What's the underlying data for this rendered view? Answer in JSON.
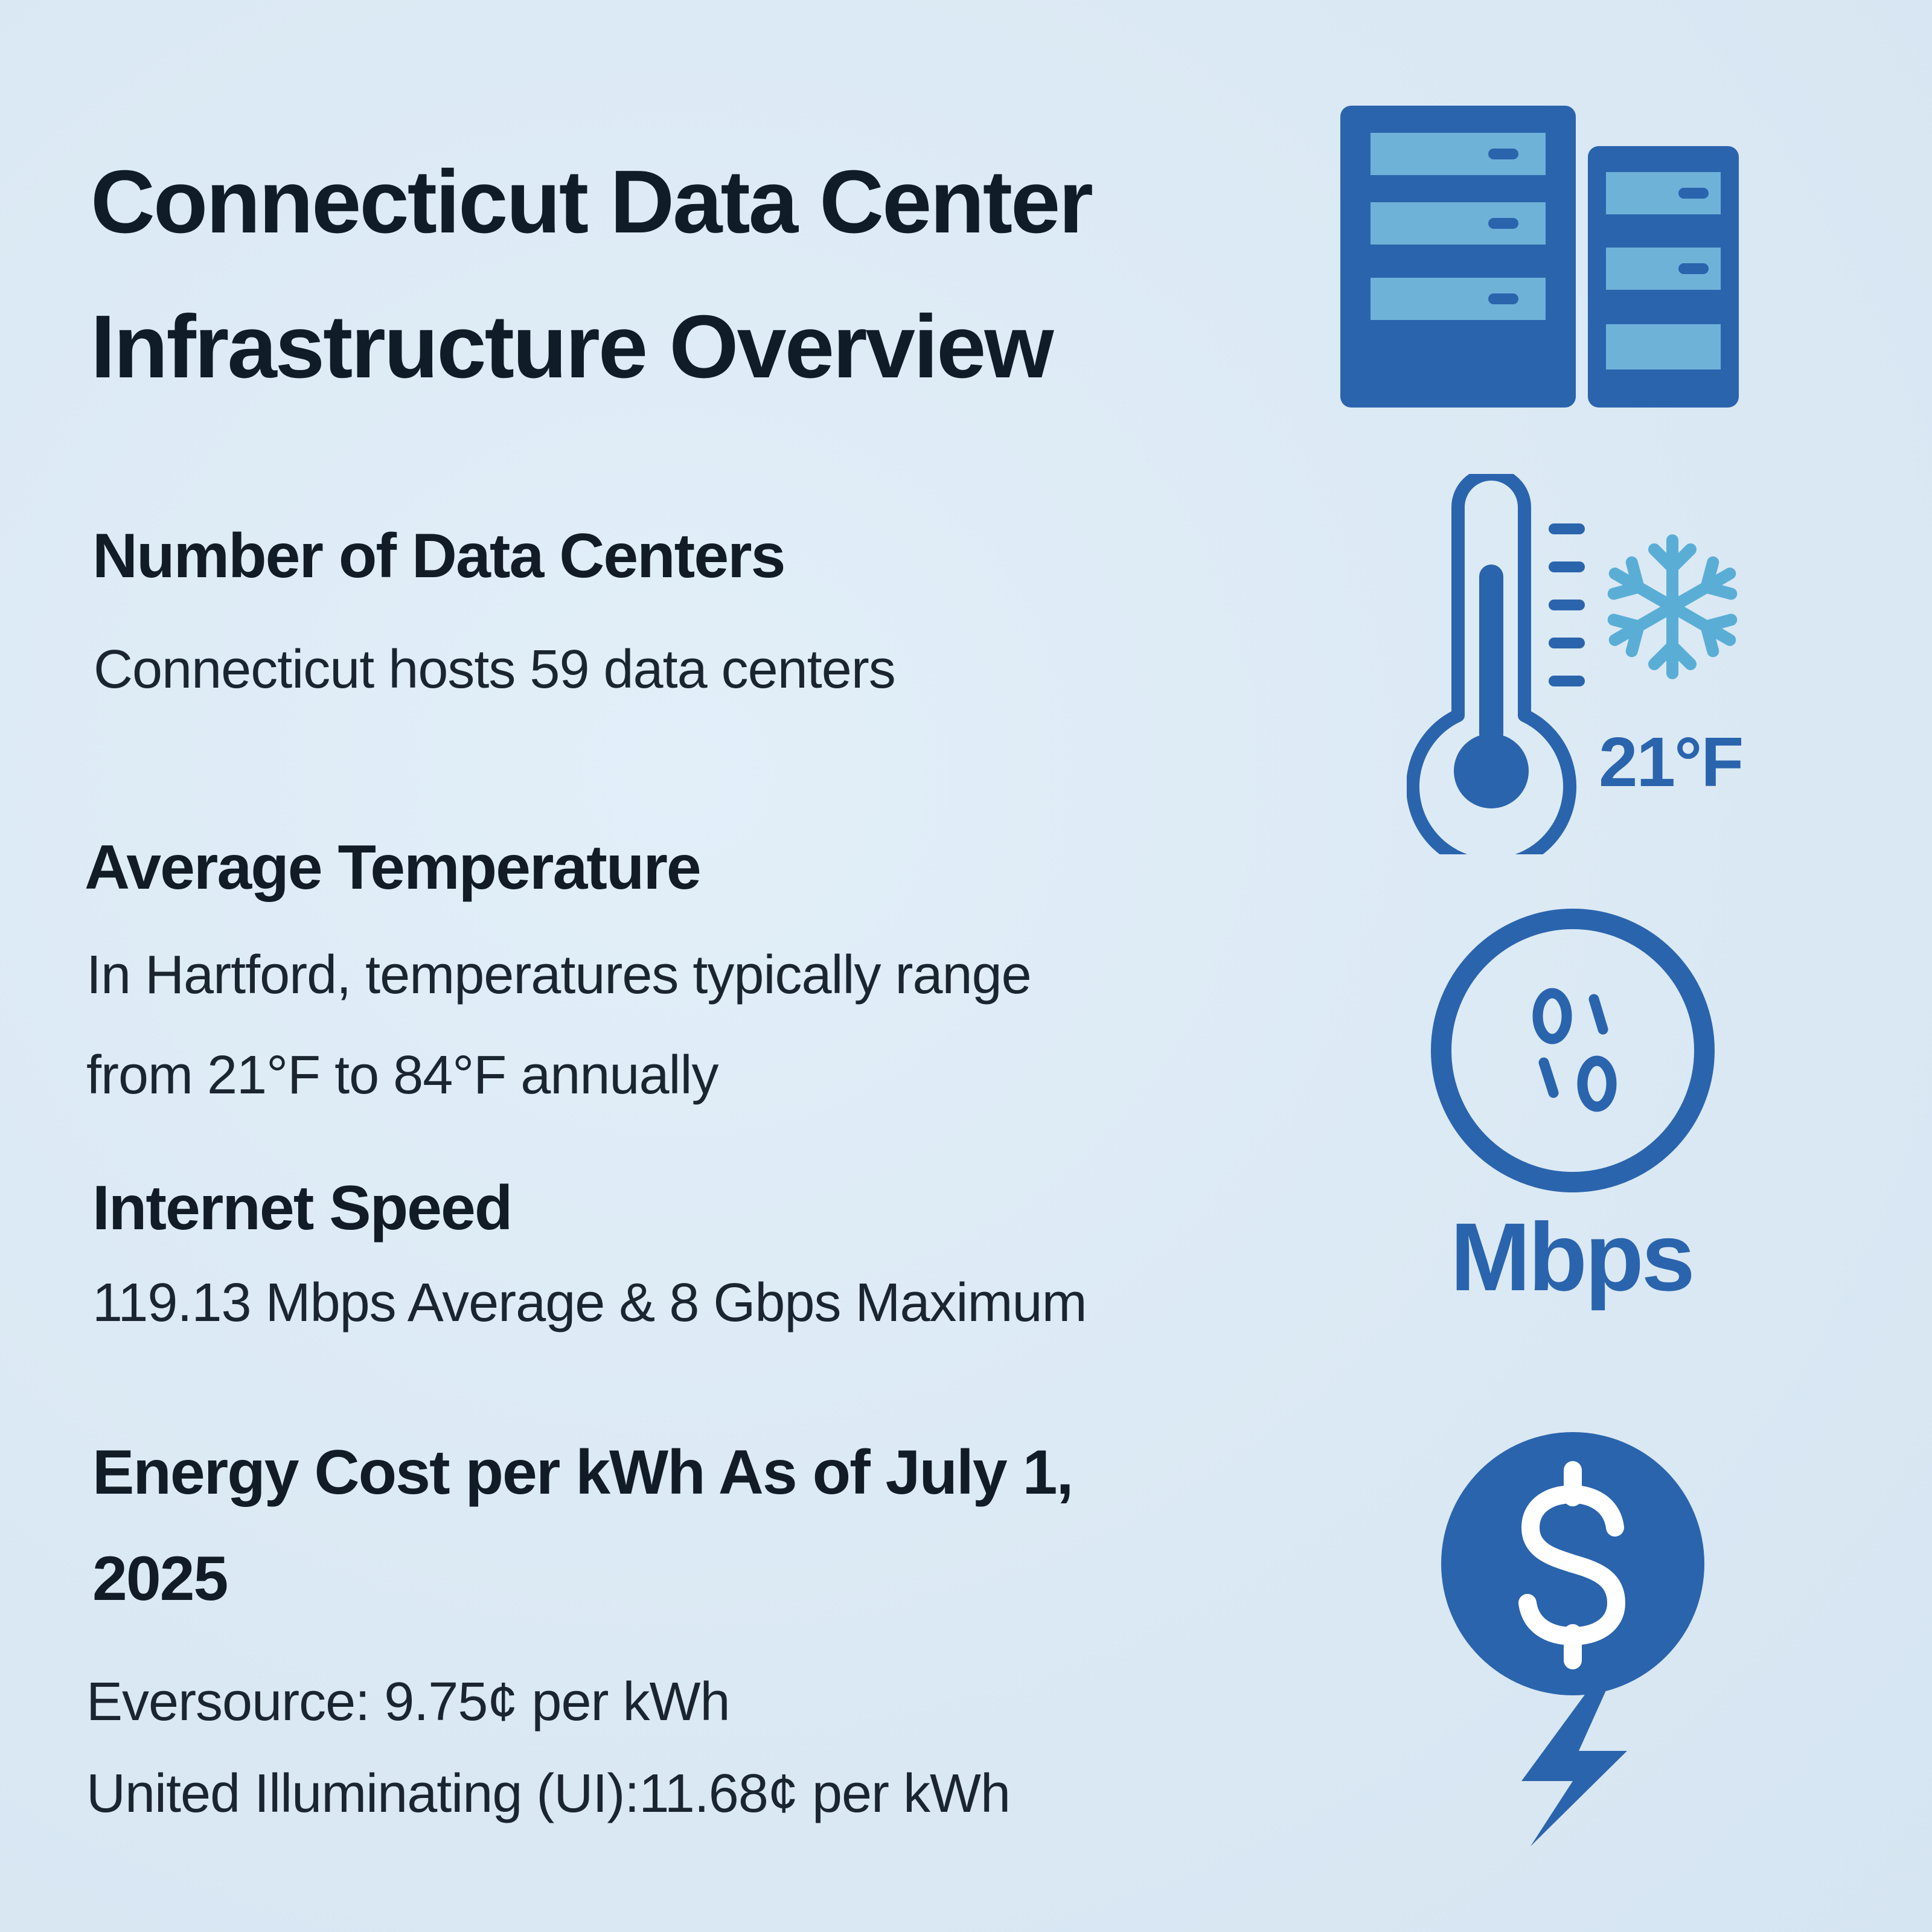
{
  "title": {
    "line1": "Connecticut Data Center",
    "line2": "Infrastructure Overview"
  },
  "sections": {
    "data_centers": {
      "heading": "Number of Data Centers",
      "text": "Connecticut hosts 59 data centers"
    },
    "temperature": {
      "heading": "Average Temperature",
      "text_line1": "In Hartford, temperatures typically range",
      "text_line2": "from 21°F to 84°F annually",
      "icon_label": "21°F"
    },
    "internet": {
      "heading": "Internet Speed",
      "text": "119.13 Mbps Average & 8 Gbps Maximum",
      "icon_label": "Mbps"
    },
    "energy": {
      "heading_line1": "Energy Cost per kWh As of July 1,",
      "heading_line2": "2025",
      "text_line1": "Eversource: 9.75¢ per kWh",
      "text_line2": "United Illuminating (UI):11.68¢ per kWh"
    }
  },
  "icons": {
    "server": "server-rack-icon",
    "thermometer": "thermometer-icon",
    "snowflake": "snowflake-icon",
    "speed": "speedometer-icon",
    "dollar": "dollar-icon",
    "lightning": "lightning-bolt-icon"
  },
  "colors": {
    "primary_blue": "#2a64ad",
    "light_blue": "#6fb2d8",
    "background": "#ddebf6",
    "text_dark": "#111c26"
  }
}
